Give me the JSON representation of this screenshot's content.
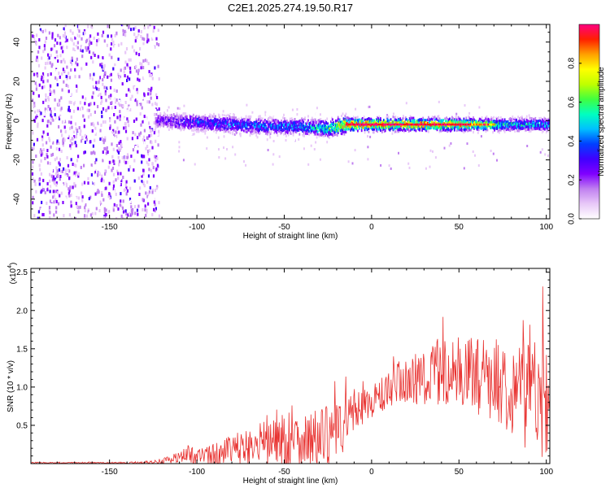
{
  "title": "C2E1.2025.274.19.50.R17",
  "chart_data": [
    {
      "type": "heatmap",
      "title": "C2E1.2025.274.19.50.R17",
      "xlabel": "Height of straight line (km)",
      "ylabel": "Frequency (Hz)",
      "xlim": [
        -195,
        102
      ],
      "ylim": [
        -50,
        49
      ],
      "xticks": [
        -150,
        -100,
        -50,
        0,
        50,
        100
      ],
      "xtick_labels": [
        "-150",
        "-100",
        "-50",
        "0",
        "50",
        "100"
      ],
      "yticks": [
        -40,
        -20,
        0,
        20,
        40
      ],
      "ytick_labels": [
        "-40",
        "-20",
        "0",
        "20",
        "40"
      ],
      "colorbar": {
        "label": "Normalized spectral amplitude",
        "range": [
          0,
          1
        ],
        "ticks": [
          0.0,
          0.2,
          0.4,
          0.6,
          0.8
        ],
        "tick_labels": [
          "0.0",
          "0.2",
          "0.4",
          "0.6",
          "0.8"
        ],
        "colors": [
          "#ffffff",
          "#e8c8f8",
          "#c080f0",
          "#8000ff",
          "#4000ff",
          "#0040ff",
          "#00c0ff",
          "#00ffc0",
          "#40ff40",
          "#c0ff00",
          "#ffff00",
          "#ffa000",
          "#ff2000",
          "#ff0080"
        ]
      },
      "description_points": {
        "noise_region_x": [
          -195,
          -125
        ],
        "ridge": [
          {
            "x": -120,
            "freq": 0,
            "amp": 0.3
          },
          {
            "x": -100,
            "freq": -1,
            "amp": 0.4
          },
          {
            "x": -80,
            "freq": -2,
            "amp": 0.45
          },
          {
            "x": -60,
            "freq": -3,
            "amp": 0.45
          },
          {
            "x": -40,
            "freq": -3,
            "amp": 0.5
          },
          {
            "x": -25,
            "freq": -4,
            "amp": 0.6
          },
          {
            "x": -15,
            "freq": -2,
            "amp": 0.95
          },
          {
            "x": 0,
            "freq": -2,
            "amp": 0.95
          },
          {
            "x": 25,
            "freq": -2,
            "amp": 0.9
          },
          {
            "x": 50,
            "freq": -2,
            "amp": 0.9
          },
          {
            "x": 75,
            "freq": -2,
            "amp": 0.6
          },
          {
            "x": 100,
            "freq": -2,
            "amp": 0.5
          }
        ]
      }
    },
    {
      "type": "line",
      "xlabel": "Height of straight line (km)",
      "ylabel": "SNR (10 * v/v)",
      "multiplier_label": "(x10",
      "multiplier_exp": "4",
      "multiplier_close": ")",
      "xlim": [
        -195,
        102
      ],
      "ylim": [
        0,
        2.55
      ],
      "xticks": [
        -150,
        -100,
        -50,
        0,
        50,
        100
      ],
      "xtick_labels": [
        "-150",
        "-100",
        "-50",
        "0",
        "50",
        "100"
      ],
      "yticks": [
        0.5,
        1.0,
        1.5,
        2.0,
        2.5
      ],
      "ytick_labels": [
        "0.5",
        "1.0",
        "1.5",
        "2.0",
        "2.5"
      ],
      "series": [
        {
          "name": "SNR",
          "color": "#e8312f",
          "envelope_x": [
            -195,
            -140,
            -125,
            -115,
            -105,
            -95,
            -85,
            -75,
            -65,
            -55,
            -45,
            -35,
            -25,
            -15,
            -10,
            0,
            10,
            20,
            30,
            40,
            50,
            60,
            70,
            80,
            90,
            95,
            100,
            102
          ],
          "envelope_mean": [
            0.01,
            0.01,
            0.02,
            0.05,
            0.12,
            0.1,
            0.14,
            0.18,
            0.22,
            0.32,
            0.3,
            0.3,
            0.35,
            0.5,
            0.7,
            0.8,
            0.95,
            1.05,
            1.15,
            1.2,
            1.2,
            1.15,
            1.1,
            1.0,
            0.9,
            0.9,
            1.0,
            1.0
          ],
          "envelope_spread": [
            0.01,
            0.01,
            0.02,
            0.05,
            0.12,
            0.12,
            0.18,
            0.25,
            0.3,
            0.4,
            0.4,
            0.4,
            0.4,
            0.35,
            0.3,
            0.2,
            0.3,
            0.35,
            0.4,
            0.45,
            0.45,
            0.5,
            0.55,
            0.6,
            0.75,
            0.85,
            0.9,
            0.8
          ]
        }
      ]
    }
  ]
}
